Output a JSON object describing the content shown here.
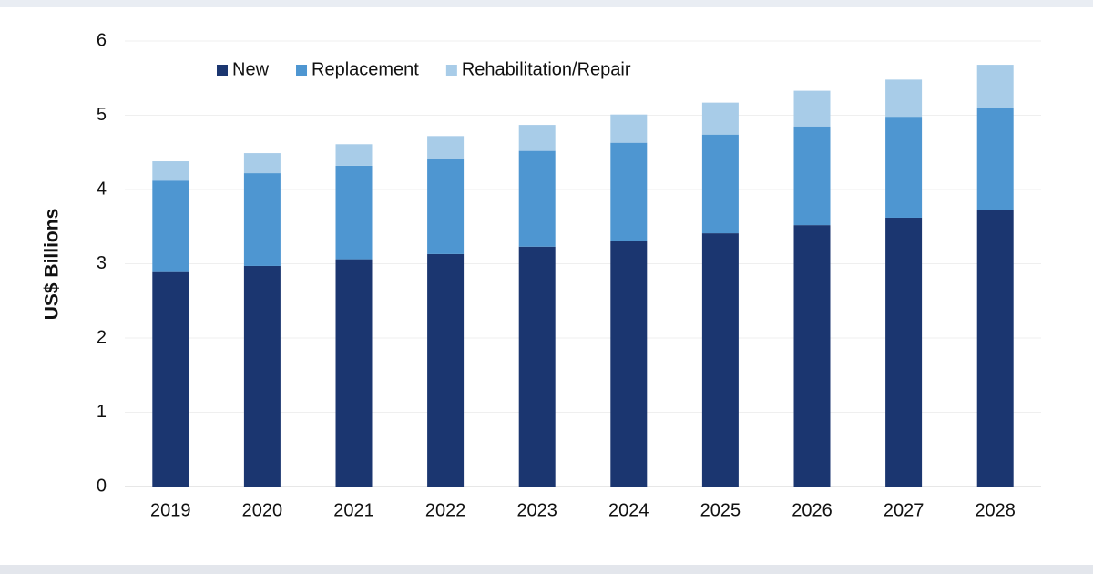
{
  "chart_data": {
    "type": "stacked-bar",
    "y_label": "US$ Billions",
    "categories": [
      "2019",
      "2020",
      "2021",
      "2022",
      "2023",
      "2024",
      "2025",
      "2026",
      "2027",
      "2028"
    ],
    "series": [
      {
        "name": "New",
        "color": "#1b3670",
        "values": [
          2.9,
          2.97,
          3.06,
          3.13,
          3.23,
          3.31,
          3.41,
          3.52,
          3.62,
          3.73
        ]
      },
      {
        "name": "Replacement",
        "color": "#4e96d1",
        "values": [
          1.22,
          1.25,
          1.26,
          1.29,
          1.29,
          1.32,
          1.33,
          1.33,
          1.36,
          1.37
        ]
      },
      {
        "name": "Rehabilitation/Repair",
        "color": "#a8cce8",
        "values": [
          0.26,
          0.27,
          0.29,
          0.3,
          0.35,
          0.38,
          0.43,
          0.48,
          0.5,
          0.58
        ]
      }
    ],
    "ylim": [
      0,
      6
    ],
    "yticks": [
      0,
      1,
      2,
      3,
      4,
      5,
      6
    ],
    "grid": true,
    "legend": "top-left"
  }
}
